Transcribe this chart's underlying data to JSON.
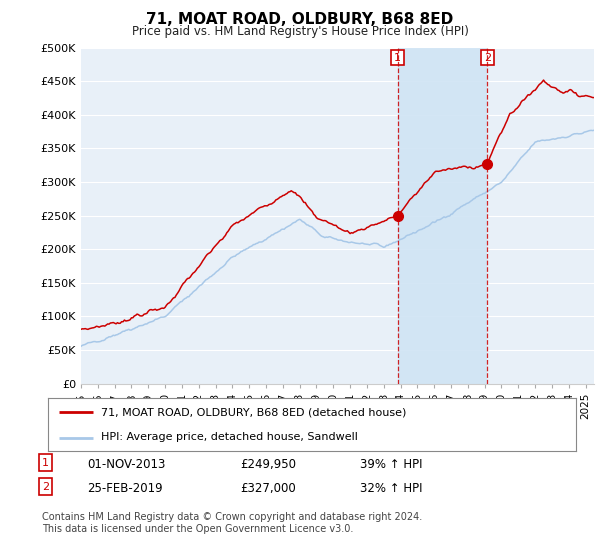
{
  "title": "71, MOAT ROAD, OLDBURY, B68 8ED",
  "subtitle": "Price paid vs. HM Land Registry's House Price Index (HPI)",
  "ylabel_ticks": [
    "£0",
    "£50K",
    "£100K",
    "£150K",
    "£200K",
    "£250K",
    "£300K",
    "£350K",
    "£400K",
    "£450K",
    "£500K"
  ],
  "ytick_values": [
    0,
    50000,
    100000,
    150000,
    200000,
    250000,
    300000,
    350000,
    400000,
    450000,
    500000
  ],
  "ylim": [
    0,
    500000
  ],
  "xlim_start": 1995.0,
  "xlim_end": 2025.5,
  "hpi_color": "#a8c8e8",
  "price_color": "#cc0000",
  "bg_color": "#e8f0f8",
  "shade_color": "#d0e4f4",
  "sale1_x": 2013.833,
  "sale1_y": 249950,
  "sale2_x": 2019.15,
  "sale2_y": 327000,
  "legend_label1": "71, MOAT ROAD, OLDBURY, B68 8ED (detached house)",
  "legend_label2": "HPI: Average price, detached house, Sandwell",
  "note1_num": "1",
  "note1_date": "01-NOV-2013",
  "note1_price": "£249,950",
  "note1_hpi": "39% ↑ HPI",
  "note2_num": "2",
  "note2_date": "25-FEB-2019",
  "note2_price": "£327,000",
  "note2_hpi": "32% ↑ HPI",
  "footer": "Contains HM Land Registry data © Crown copyright and database right 2024.\nThis data is licensed under the Open Government Licence v3.0."
}
